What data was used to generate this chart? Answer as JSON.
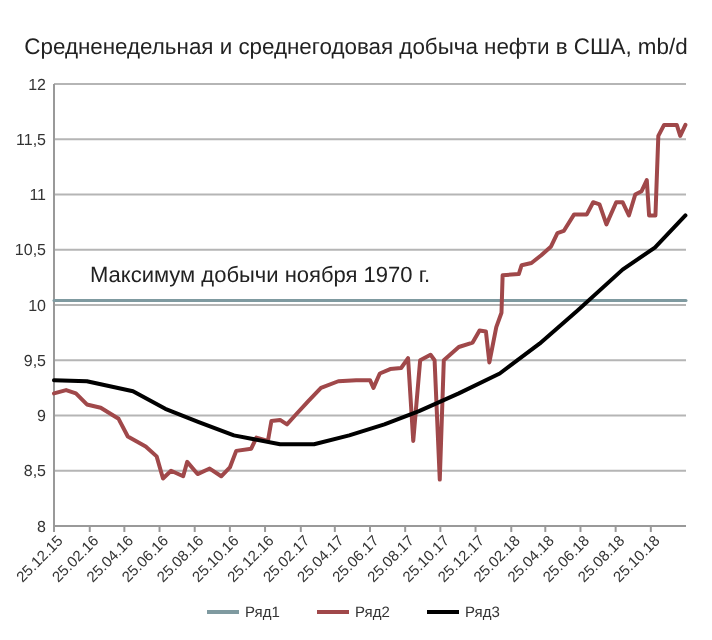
{
  "chart_data": {
    "type": "line",
    "title": "Средненедельная и среднегодовая добыча нефти в США, mb/d",
    "annotations": [
      "Максимум добычи ноября 1970 г."
    ],
    "xlim": [
      "2015-12-25",
      "2018-12-25"
    ],
    "xticks": [
      {
        "value": "2015-12-25",
        "label": "25.12.15"
      },
      {
        "value": "2016-02-25",
        "label": "25.02.16"
      },
      {
        "value": "2016-04-25",
        "label": "25.04.16"
      },
      {
        "value": "2016-06-25",
        "label": "25.06.16"
      },
      {
        "value": "2016-08-25",
        "label": "25.08.16"
      },
      {
        "value": "2016-10-25",
        "label": "25.10.16"
      },
      {
        "value": "2016-12-25",
        "label": "25.12.16"
      },
      {
        "value": "2017-02-25",
        "label": "25.02.17"
      },
      {
        "value": "2017-04-25",
        "label": "25.04.17"
      },
      {
        "value": "2017-06-25",
        "label": "25.06.17"
      },
      {
        "value": "2017-08-25",
        "label": "25.08.17"
      },
      {
        "value": "2017-10-25",
        "label": "25.10.17"
      },
      {
        "value": "2017-12-25",
        "label": "25.12.17"
      },
      {
        "value": "2018-02-25",
        "label": "25.02.18"
      },
      {
        "value": "2018-04-25",
        "label": "25.04.18"
      },
      {
        "value": "2018-06-25",
        "label": "25.06.18"
      },
      {
        "value": "2018-08-25",
        "label": "25.08.18"
      },
      {
        "value": "2018-10-25",
        "label": "25.10.18"
      }
    ],
    "ylim": [
      8,
      12
    ],
    "yticks": [
      8,
      {
        "value": 8.5,
        "label": "8,5"
      },
      9,
      {
        "value": 9.5,
        "label": "9,5"
      },
      10,
      {
        "value": 10.5,
        "label": "10,5"
      },
      11,
      {
        "value": 11.5,
        "label": "11,5"
      },
      12
    ],
    "grid": "y",
    "legend": "bottom",
    "marker": "none",
    "line_style": "solid",
    "series": [
      {
        "name": "Ряд1",
        "color": "#7f9aa0",
        "x": [
          "2015-12-25",
          "2018-12-25"
        ],
        "values": [
          10.04,
          10.04
        ]
      },
      {
        "name": "Ряд2",
        "color": "#a0484a",
        "x": [
          "2015-12-25",
          "2016-01-15",
          "2016-02-01",
          "2016-02-20",
          "2016-03-15",
          "2016-04-15",
          "2016-05-01",
          "2016-06-01",
          "2016-06-20",
          "2016-07-01",
          "2016-07-15",
          "2016-08-05",
          "2016-08-12",
          "2016-08-30",
          "2016-09-20",
          "2016-10-10",
          "2016-10-25",
          "2016-11-05",
          "2016-12-01",
          "2016-12-10",
          "2016-12-30",
          "2017-01-05",
          "2017-01-20",
          "2017-02-01",
          "2017-02-15",
          "2017-03-10",
          "2017-04-01",
          "2017-05-01",
          "2017-06-01",
          "2017-06-25",
          "2017-07-01",
          "2017-07-12",
          "2017-07-30",
          "2017-08-18",
          "2017-08-30",
          "2017-09-08",
          "2017-09-20",
          "2017-10-08",
          "2017-10-15",
          "2017-10-24",
          "2017-10-31",
          "2017-11-26",
          "2017-12-20",
          "2018-01-01",
          "2018-01-12",
          "2018-01-18",
          "2018-01-30",
          "2018-02-08",
          "2018-02-10",
          "2018-03-10",
          "2018-03-15",
          "2018-04-01",
          "2018-04-18",
          "2018-05-05",
          "2018-05-16",
          "2018-05-27",
          "2018-06-14",
          "2018-07-06",
          "2018-07-17",
          "2018-07-28",
          "2018-08-09",
          "2018-08-26",
          "2018-09-06",
          "2018-09-17",
          "2018-09-28",
          "2018-10-09",
          "2018-10-18",
          "2018-10-22",
          "2018-11-02",
          "2018-11-07",
          "2018-11-17",
          "2018-12-09",
          "2018-12-15",
          "2018-12-24"
        ],
        "values": [
          9.2,
          9.23,
          9.2,
          9.1,
          9.07,
          8.97,
          8.81,
          8.72,
          8.63,
          8.43,
          8.5,
          8.45,
          8.58,
          8.47,
          8.52,
          8.45,
          8.53,
          8.68,
          8.7,
          8.8,
          8.77,
          8.95,
          8.96,
          8.92,
          9.0,
          9.13,
          9.25,
          9.31,
          9.32,
          9.32,
          9.25,
          9.38,
          9.42,
          9.43,
          9.52,
          8.77,
          9.5,
          9.55,
          9.5,
          8.42,
          9.5,
          9.62,
          9.66,
          9.77,
          9.76,
          9.48,
          9.8,
          9.93,
          10.27,
          10.28,
          10.36,
          10.38,
          10.45,
          10.53,
          10.65,
          10.67,
          10.82,
          10.82,
          10.93,
          10.91,
          10.73,
          10.93,
          10.93,
          10.81,
          11.0,
          11.03,
          11.13,
          10.81,
          10.81,
          11.53,
          11.63,
          11.63,
          11.53,
          11.63
        ]
      },
      {
        "name": "Ряд3",
        "color": "#000000",
        "x": [
          "2015-12-25",
          "2016-02-20",
          "2016-05-10",
          "2016-07-05",
          "2016-09-01",
          "2016-11-01",
          "2017-01-20",
          "2017-03-20",
          "2017-05-20",
          "2017-07-20",
          "2017-09-18",
          "2017-11-26",
          "2018-02-05",
          "2018-04-15",
          "2018-06-20",
          "2018-09-06",
          "2018-11-01",
          "2018-12-24"
        ],
        "values": [
          9.32,
          9.31,
          9.22,
          9.06,
          8.94,
          8.82,
          8.74,
          8.74,
          8.82,
          8.92,
          9.04,
          9.2,
          9.38,
          9.65,
          9.95,
          10.32,
          10.52,
          10.81
        ]
      }
    ]
  }
}
